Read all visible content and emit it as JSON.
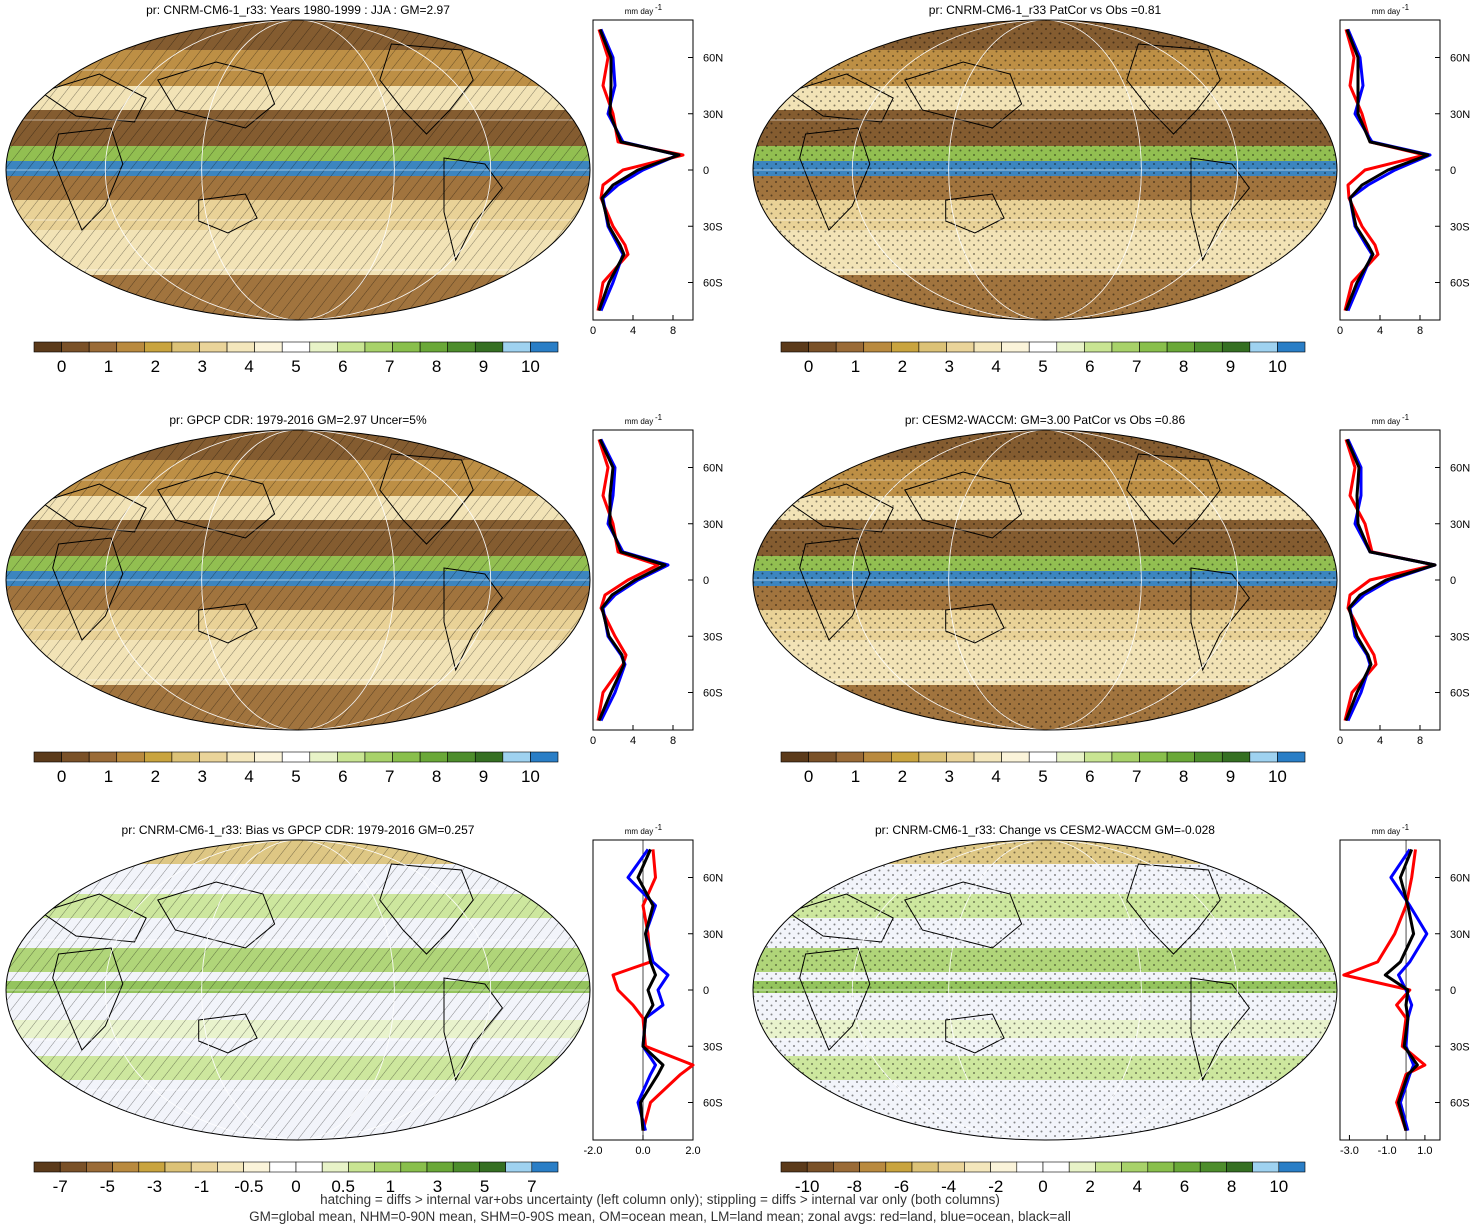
{
  "colors": {
    "abs_scale": [
      "#5b3a1a",
      "#7a5128",
      "#9a6b37",
      "#b98a3f",
      "#c9a43f",
      "#dcc277",
      "#ead49a",
      "#f4e7bc",
      "#fbf4da",
      "#ffffff",
      "#e8f3c8",
      "#c9e593",
      "#a8d26a",
      "#89bf4c",
      "#6aa838",
      "#4d8d2c",
      "#356f22",
      "#9fd2f0",
      "#2a7ec6"
    ],
    "diff_scale": [
      "#5b3a1a",
      "#7a5128",
      "#9a6b37",
      "#b98a3f",
      "#c9a43f",
      "#dcc277",
      "#ead49a",
      "#f4e7bc",
      "#fbf4da",
      "#ffffff",
      "#ffffff",
      "#e8f3c8",
      "#c9e593",
      "#a8d26a",
      "#89bf4c",
      "#6aa838",
      "#4d8d2c",
      "#356f22",
      "#9fd2f0",
      "#2a7ec6"
    ],
    "land_line": "#ff0000",
    "ocean_line": "#0000ff",
    "all_line": "#000000",
    "ocean_dry": "#9a6b37",
    "ocean_mid": "#ead49a",
    "itcz": "#2a7ec6",
    "continent_outline": "#000000"
  },
  "panels": [
    {
      "title": "pr: CNRM-CM6-1_r33: Years 1980-1999 : JJA : GM=2.97",
      "kind": "abs",
      "overlay": "hatch",
      "colorbar_labels": [
        "0",
        "1",
        "2",
        "3",
        "4",
        "5",
        "6",
        "7",
        "8",
        "9",
        "10"
      ],
      "zonal": {
        "unit": "mm day",
        "unit_sup": "-1",
        "xticks": [
          "0",
          "4",
          "8"
        ],
        "xlim": [
          0,
          10
        ],
        "lat_labels": [
          "60N",
          "30N",
          "0",
          "30S",
          "60S"
        ],
        "lats": [
          -75,
          -60,
          -45,
          -40,
          -30,
          -15,
          -8,
          0,
          8,
          15,
          30,
          45,
          60,
          75
        ],
        "land": [
          0.5,
          1.0,
          3.5,
          3.2,
          2.0,
          0.8,
          1.0,
          3.0,
          9.0,
          2.5,
          2.0,
          1.0,
          1.5,
          0.6
        ],
        "ocean": [
          0.8,
          2.0,
          3.0,
          2.5,
          1.5,
          1.0,
          2.5,
          5.0,
          8.5,
          3.0,
          1.5,
          2.2,
          2.0,
          0.8
        ],
        "all": [
          0.6,
          1.6,
          3.1,
          2.7,
          1.6,
          0.9,
          2.0,
          4.5,
          8.6,
          2.8,
          1.7,
          1.8,
          1.8,
          0.7
        ]
      }
    },
    {
      "title": "pr: CNRM-CM6-1_r33 PatCor vs Obs =0.81",
      "kind": "abs",
      "overlay": "stipple",
      "colorbar_labels": [
        "0",
        "1",
        "2",
        "3",
        "4",
        "5",
        "6",
        "7",
        "8",
        "9",
        "10"
      ],
      "zonal": {
        "unit": "mm day",
        "unit_sup": "-1",
        "xticks": [
          "0",
          "4",
          "8"
        ],
        "xlim": [
          0,
          10
        ],
        "lat_labels": [
          "60N",
          "30N",
          "0",
          "30S",
          "60S"
        ],
        "lats": [
          -75,
          -60,
          -45,
          -40,
          -30,
          -15,
          -8,
          0,
          8,
          15,
          30,
          45,
          60,
          75
        ],
        "land": [
          0.5,
          1.2,
          3.8,
          3.5,
          2.2,
          0.9,
          0.8,
          2.5,
          8.5,
          3.0,
          2.2,
          1.0,
          1.4,
          0.6
        ],
        "ocean": [
          0.8,
          2.0,
          3.2,
          2.6,
          1.5,
          1.0,
          2.8,
          5.5,
          9.0,
          3.2,
          1.5,
          2.3,
          2.0,
          0.8
        ],
        "all": [
          0.6,
          1.7,
          3.3,
          2.8,
          1.6,
          1.0,
          2.2,
          4.8,
          8.8,
          3.0,
          1.8,
          1.8,
          1.8,
          0.7
        ]
      }
    },
    {
      "title": "pr: GPCP CDR: 1979-2016 GM=2.97 Uncer=5%",
      "kind": "abs",
      "overlay": "hatch",
      "colorbar_labels": [
        "0",
        "1",
        "2",
        "3",
        "4",
        "5",
        "6",
        "7",
        "8",
        "9",
        "10"
      ],
      "zonal": {
        "unit": "mm day",
        "unit_sup": "-1",
        "xticks": [
          "0",
          "4",
          "8"
        ],
        "xlim": [
          0,
          10
        ],
        "lat_labels": [
          "60N",
          "30N",
          "0",
          "30S",
          "60S"
        ],
        "lats": [
          -75,
          -60,
          -45,
          -40,
          -30,
          -15,
          -8,
          0,
          8,
          15,
          30,
          45,
          60,
          75
        ],
        "land": [
          0.5,
          1.0,
          3.0,
          3.3,
          2.2,
          0.8,
          1.2,
          3.5,
          6.5,
          2.5,
          2.0,
          1.0,
          1.5,
          0.6
        ],
        "ocean": [
          0.8,
          2.2,
          3.2,
          2.8,
          1.5,
          1.0,
          2.2,
          4.5,
          7.5,
          3.0,
          1.5,
          2.0,
          2.2,
          0.8
        ],
        "all": [
          0.6,
          1.8,
          3.1,
          2.9,
          1.6,
          0.9,
          1.9,
          4.2,
          7.2,
          2.8,
          1.7,
          1.7,
          2.0,
          0.7
        ]
      }
    },
    {
      "title": "pr: CESM2-WACCM: GM=3.00 PatCor vs Obs =0.86",
      "kind": "abs",
      "overlay": "stipple",
      "colorbar_labels": [
        "0",
        "1",
        "2",
        "3",
        "4",
        "5",
        "6",
        "7",
        "8",
        "9",
        "10"
      ],
      "zonal": {
        "unit": "mm day",
        "unit_sup": "-1",
        "xticks": [
          "0",
          "4",
          "8"
        ],
        "xlim": [
          0,
          10
        ],
        "lat_labels": [
          "60N",
          "30N",
          "0",
          "30S",
          "60S"
        ],
        "lats": [
          -75,
          -60,
          -45,
          -40,
          -30,
          -15,
          -8,
          0,
          8,
          15,
          30,
          45,
          60,
          75
        ],
        "land": [
          0.5,
          1.2,
          3.6,
          3.4,
          2.3,
          0.8,
          1.0,
          3.0,
          9.5,
          3.2,
          2.5,
          1.0,
          1.5,
          0.6
        ],
        "ocean": [
          0.8,
          2.1,
          3.0,
          2.7,
          1.5,
          1.0,
          2.4,
          5.0,
          9.5,
          3.0,
          1.5,
          2.1,
          2.1,
          0.8
        ],
        "all": [
          0.6,
          1.7,
          3.1,
          2.8,
          1.7,
          0.9,
          2.0,
          4.6,
          9.5,
          3.0,
          1.8,
          1.7,
          1.9,
          0.7
        ]
      }
    },
    {
      "title": "pr: CNRM-CM6-1_r33: Bias vs GPCP CDR: 1979-2016 GM=0.257",
      "kind": "diff",
      "overlay": "hatch",
      "colorbar_labels": [
        "-7",
        "-5",
        "-3",
        "-1",
        "-0.5",
        "0",
        "0.5",
        "1",
        "3",
        "5",
        "7"
      ],
      "zonal": {
        "unit": "mm day",
        "unit_sup": "-1",
        "xticks": [
          "-2.0",
          "0.0",
          "2.0"
        ],
        "xlim": [
          -2,
          2
        ],
        "lat_labels": [
          "60N",
          "30N",
          "0",
          "30S",
          "60S"
        ],
        "lats": [
          -75,
          -60,
          -45,
          -40,
          -30,
          -15,
          -8,
          0,
          8,
          15,
          30,
          45,
          60,
          75
        ],
        "land": [
          0.0,
          0.3,
          1.5,
          2.0,
          0.1,
          0.0,
          -0.4,
          -1.0,
          -1.2,
          0.3,
          0.2,
          0.0,
          0.5,
          0.4
        ],
        "ocean": [
          0.1,
          -0.2,
          0.3,
          0.5,
          0.0,
          0.1,
          0.8,
          0.6,
          1.0,
          0.4,
          0.1,
          0.5,
          -0.6,
          0.2
        ],
        "all": [
          0.0,
          -0.1,
          0.6,
          0.8,
          0.0,
          0.1,
          0.4,
          0.2,
          0.5,
          0.3,
          0.1,
          0.4,
          -0.2,
          0.3
        ]
      }
    },
    {
      "title": "pr: CNRM-CM6-1_r33: Change vs CESM2-WACCM GM=-0.028",
      "kind": "diff",
      "overlay": "stipple",
      "colorbar_labels": [
        "-10",
        "-8",
        "-6",
        "-4",
        "-2",
        "0",
        "2",
        "4",
        "6",
        "8",
        "10"
      ],
      "zonal": {
        "unit": "mm day",
        "unit_sup": "-1",
        "xticks": [
          "-3.0",
          "-1.0",
          "1.0"
        ],
        "xlim": [
          -3.5,
          1.8
        ],
        "lat_labels": [
          "60N",
          "30N",
          "0",
          "30S",
          "60S"
        ],
        "lats": [
          -75,
          -60,
          -45,
          -40,
          -30,
          -15,
          -8,
          0,
          8,
          15,
          30,
          45,
          60,
          75
        ],
        "land": [
          0.0,
          -0.5,
          0.0,
          1.0,
          -0.2,
          0.0,
          -0.5,
          0.2,
          -3.3,
          -1.5,
          -0.6,
          0.0,
          0.3,
          0.5
        ],
        "ocean": [
          0.1,
          -0.3,
          0.2,
          0.4,
          0.0,
          0.1,
          0.3,
          0.0,
          -0.4,
          0.2,
          1.1,
          0.2,
          -0.8,
          0.2
        ],
        "all": [
          0.0,
          -0.4,
          0.1,
          0.6,
          -0.1,
          0.1,
          0.0,
          0.1,
          -1.1,
          -0.3,
          0.4,
          0.1,
          -0.3,
          0.3
        ]
      }
    }
  ],
  "footer": {
    "line1": "hatching = diffs > internal var+obs uncertainty (left column only); stippling = diffs > internal var only (both columns)",
    "line2": "GM=global mean, NHM=0-90N mean, SHM=0-90S mean, OM=ocean mean, LM=land mean; zonal avgs: red=land, blue=ocean, black=all"
  }
}
